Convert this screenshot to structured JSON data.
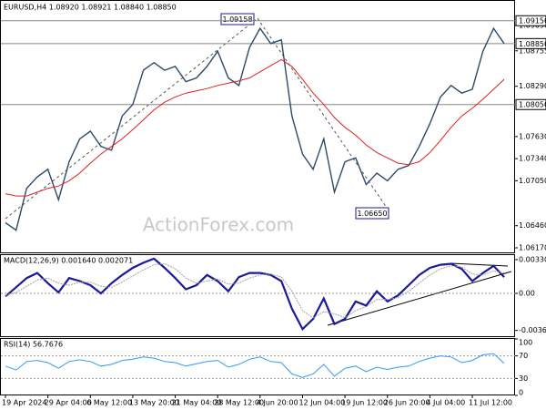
{
  "chart_data": [
    {
      "type": "line",
      "title": "EURUSD,H4  1.08920 1.08921 1.08840 1.08850",
      "watermark": "ActionForex.com",
      "ylim": [
        1.0611,
        1.0941
      ],
      "yticks": [
        {
          "value": 1.0909,
          "label": "1.09090"
        },
        1.08755,
        {
          "value": 1.0829,
          "label": "1.08290"
        },
        {
          "value": 1.0763,
          "label": "1.07630"
        },
        {
          "value": 1.0734,
          "label": "1.07340"
        },
        {
          "value": 1.0705,
          "label": "1.07050"
        },
        {
          "value": 1.0646,
          "label": "1.06460"
        },
        {
          "value": 1.0617,
          "label": "1.06170"
        }
      ],
      "levels": [
        {
          "value": 1.0915,
          "label": "1.09150"
        },
        {
          "value": 1.0885,
          "label": "1.08850"
        },
        {
          "value": 1.0805,
          "label": "1.08050"
        }
      ],
      "annotations": [
        "1.09158",
        "1.06650"
      ],
      "series": [
        {
          "color": "#2b4a6b",
          "values": [
            1.065,
            1.064,
            1.0695,
            1.071,
            1.072,
            1.068,
            1.073,
            1.076,
            1.077,
            1.075,
            1.0745,
            1.079,
            1.0805,
            1.085,
            1.086,
            1.085,
            1.0855,
            1.0835,
            1.084,
            1.0855,
            1.0875,
            1.084,
            1.083,
            1.088,
            1.0905,
            1.0885,
            1.089,
            1.079,
            1.074,
            1.072,
            1.076,
            1.069,
            1.073,
            1.0735,
            1.07,
            1.0715,
            1.0705,
            1.072,
            1.0725,
            1.075,
            1.078,
            1.0815,
            1.083,
            1.082,
            1.0825,
            1.0875,
            1.0905,
            1.0885
          ]
        },
        {
          "color": "#e02020",
          "values": [
            1.0688,
            1.0685,
            1.0685,
            1.069,
            1.0695,
            1.0698,
            1.0705,
            1.0715,
            1.0728,
            1.074,
            1.075,
            1.076,
            1.0772,
            1.0785,
            1.0798,
            1.0808,
            1.0815,
            1.082,
            1.0823,
            1.0826,
            1.083,
            1.0833,
            1.0836,
            1.084,
            1.0848,
            1.0856,
            1.0864,
            1.0855,
            1.0838,
            1.082,
            1.0805,
            1.0788,
            1.0775,
            1.0765,
            1.0752,
            1.0742,
            1.0735,
            1.0728,
            1.0726,
            1.073,
            1.0742,
            1.0758,
            1.0775,
            1.079,
            1.08,
            1.0812,
            1.0825,
            1.0838
          ]
        }
      ]
    },
    {
      "type": "line",
      "title": "MACD(12,26,9) 0.001640 0.002071",
      "ylim": [
        -0.0042,
        0.00375
      ],
      "yticks": [
        0.003308,
        {
          "value": 0,
          "label": "0.00"
        },
        -0.003635
      ],
      "series": [
        {
          "color": "#1a1a9a",
          "values": [
            -0.0003,
            0.0006,
            0.0015,
            0.002,
            0.001,
            0.0001,
            0.0015,
            0.0012,
            0.0008,
            0.0,
            0.001,
            0.0018,
            0.0025,
            0.003,
            0.0034,
            0.0025,
            0.0015,
            0.0004,
            0.0008,
            0.0018,
            0.0012,
            0.0002,
            0.0016,
            0.002,
            0.002,
            0.0018,
            0.0012,
            -0.0015,
            -0.0035,
            -0.0025,
            -0.0005,
            -0.003,
            -0.0025,
            -0.0008,
            -0.0012,
            0.0002,
            -0.0008,
            -0.0002,
            0.0008,
            0.0018,
            0.0025,
            0.0028,
            0.0029,
            0.0024,
            0.0012,
            0.002,
            0.0027,
            0.0016
          ]
        },
        {
          "color": "#a0a0a0",
          "values": [
            -0.0002,
            0.0001,
            0.0007,
            0.0013,
            0.0015,
            0.001,
            0.0008,
            0.0011,
            0.0011,
            0.0007,
            0.0006,
            0.0011,
            0.0017,
            0.0023,
            0.0028,
            0.0029,
            0.0024,
            0.0015,
            0.001,
            0.0012,
            0.0014,
            0.0009,
            0.001,
            0.0015,
            0.0018,
            0.0019,
            0.0016,
            0.0002,
            -0.0017,
            -0.0024,
            -0.0018,
            -0.002,
            -0.0024,
            -0.0017,
            -0.0013,
            -0.0006,
            -0.0006,
            -0.0004,
            0.0002,
            0.001,
            0.0018,
            0.0024,
            0.0027,
            0.0026,
            0.0019,
            0.0018,
            0.0022,
            0.002
          ]
        }
      ]
    },
    {
      "type": "line",
      "title": "RSI(14) 56.7676",
      "ylim": [
        0,
        100
      ],
      "yticks": [
        100,
        70,
        30,
        0
      ],
      "categories": [
        "19 Apr 2024",
        null,
        null,
        null,
        "29 Apr 04:00",
        null,
        null,
        null,
        "6 May 12:00",
        null,
        null,
        null,
        "13 May 20:00",
        null,
        null,
        null,
        "21 May 04:00",
        null,
        null,
        null,
        "28 May 12:00",
        null,
        null,
        null,
        "4 Jun 20:00",
        null,
        null,
        null,
        "12 Jun 04:00",
        null,
        null,
        null,
        "19 Jun 12:00",
        null,
        null,
        null,
        "26 Jun 20:00",
        null,
        null,
        null,
        "4 Jul 04:00",
        null,
        null,
        null,
        "11 Jul 12:00",
        null,
        null,
        null
      ],
      "series": [
        {
          "color": "#3399ff",
          "values": [
            52,
            45,
            60,
            62,
            58,
            48,
            60,
            63,
            60,
            52,
            55,
            62,
            64,
            68,
            66,
            60,
            58,
            52,
            56,
            60,
            62,
            50,
            55,
            64,
            68,
            60,
            58,
            38,
            32,
            38,
            55,
            34,
            48,
            52,
            42,
            50,
            46,
            50,
            52,
            60,
            66,
            70,
            68,
            58,
            62,
            72,
            74,
            57
          ]
        }
      ]
    }
  ]
}
